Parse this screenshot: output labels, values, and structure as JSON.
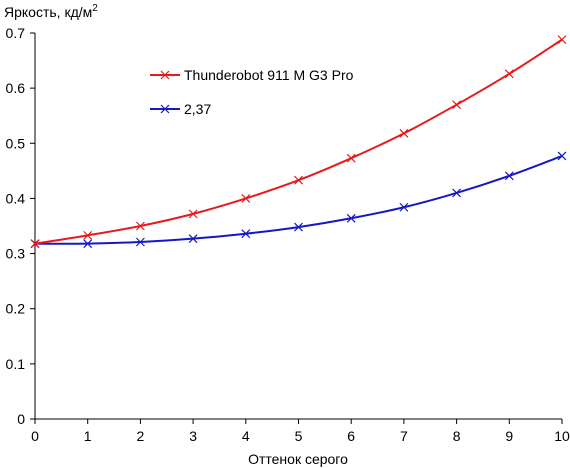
{
  "chart_data": {
    "type": "line",
    "title": "",
    "ylabel_main": "Яркость, кд/м",
    "ylabel_sup": "2",
    "xlabel": "Оттенок серого",
    "xlim": [
      0,
      10
    ],
    "ylim": [
      0,
      0.7
    ],
    "x_ticks": [
      "0",
      "1",
      "2",
      "3",
      "4",
      "5",
      "6",
      "7",
      "8",
      "9",
      "10"
    ],
    "y_ticks": [
      "0",
      "0.1",
      "0.2",
      "0.3",
      "0.4",
      "0.5",
      "0.6",
      "0.7"
    ],
    "grid": false,
    "legend_position": "top-center",
    "x": [
      0,
      1,
      2,
      3,
      4,
      5,
      6,
      7,
      8,
      9,
      10
    ],
    "series": [
      {
        "name": "Thunderobot 911 M G3 Pro",
        "color": "#e8191b",
        "marker": "x",
        "values": [
          0.318,
          0.333,
          0.35,
          0.372,
          0.4,
          0.433,
          0.473,
          0.518,
          0.57,
          0.626,
          0.688
        ]
      },
      {
        "name": "2,37",
        "color": "#1419c4",
        "marker": "x",
        "values": [
          0.318,
          0.318,
          0.321,
          0.327,
          0.336,
          0.348,
          0.364,
          0.384,
          0.41,
          0.441,
          0.477
        ]
      }
    ]
  }
}
